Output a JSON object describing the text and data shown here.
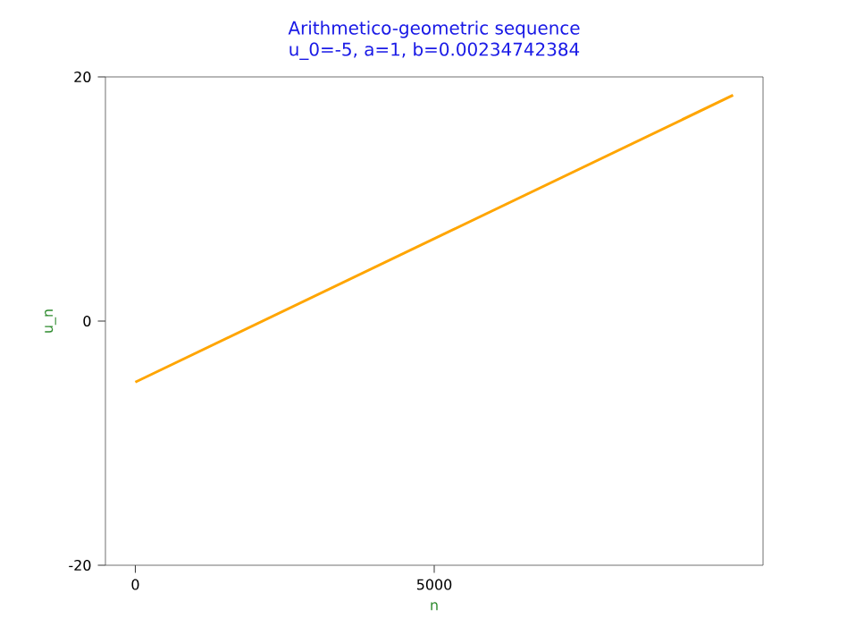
{
  "chart_data": {
    "type": "line",
    "title": "Arithmetico-geometric sequence",
    "subtitle": "u_0=-5, a=1, b=0.00234742384",
    "xlabel": "n",
    "ylabel": "u_n",
    "x": [
      0,
      9999
    ],
    "series": [
      {
        "color": "#ffa500",
        "values": [
          -5,
          18.5
        ]
      }
    ],
    "xlim": [
      -500,
      10500
    ],
    "ylim": [
      -20,
      20
    ],
    "xticks": [
      0,
      5000
    ],
    "yticks": [
      -20,
      0,
      20
    ],
    "grid": false,
    "marker": "none",
    "line_style": "solid"
  }
}
